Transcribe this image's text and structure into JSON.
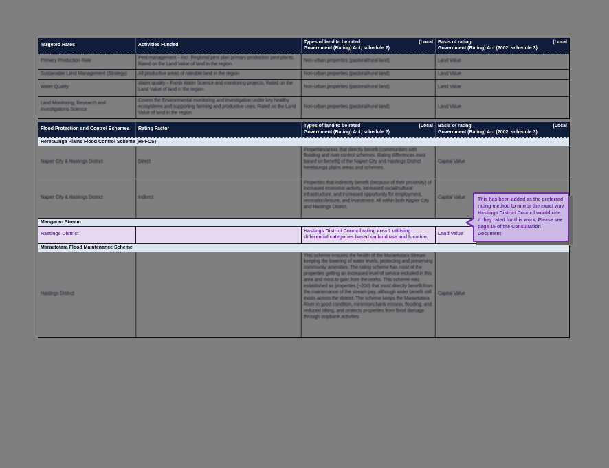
{
  "colors": {
    "page_background": "#7f7f7f",
    "header_navy": "#101d3a",
    "section_band_blue": "#dce6f1",
    "highlight_lavender": "#e6daf1",
    "highlight_purple_text": "#7030a0",
    "callout_background": "#cbb8e4",
    "callout_border": "#7030a0"
  },
  "table1": {
    "headers": {
      "col1": "Targeted Rates",
      "col2": "Activities Funded",
      "col3_line1": "Types of land to be rated",
      "col3_local": "(Local",
      "col3_line2": "Government (Rating) Act, schedule 2)",
      "col4_line1": "Basis of rating",
      "col4_local": "(Local",
      "col4_line2": "Government (Rating) Act (2002, schedule 3)"
    },
    "rows": [
      {
        "targeted_rate": "Primary Production Rate",
        "activities": "Pest management – incl. Regional pest plan primary production pest plants. Rated on the Land Value of land in the region.",
        "land_types": "Non-urban properties (pastoral/rural land).",
        "basis": "Land Value"
      },
      {
        "targeted_rate": "Sustainable Land Management (Strategy)",
        "activities": "All productive areas of rateable land in the region",
        "land_types": "Non-urban properties (pastoral/rural land).",
        "basis": "Land Value"
      },
      {
        "targeted_rate": "Water Quality",
        "activities": "Water quality – Fresh Water Science and monitoring projects. Rated on the Land Value of land in the region.",
        "land_types": "Non-urban properties (pastoral/rural land).",
        "basis": "Land Value"
      },
      {
        "targeted_rate": "Land Monitoring, Research and Investigations Science",
        "activities": "Covers the Environmental monitoring and investigation under key healthy ecosystems and supporting farming and productive uses. Rated on the Land Value of land in the region.",
        "land_types": "Non-urban properties (pastoral/rural land).",
        "basis": "Land Value"
      }
    ]
  },
  "table2": {
    "headers": {
      "col1": "Flood Protection and Control Schemes",
      "col2": "Rating Factor",
      "col3_line1": "Types of land to be rated",
      "col3_local": "(Local",
      "col3_line2": "Government (Rating) Act, schedule 2)",
      "col4_line1": "Basis of rating",
      "col4_local": "(Local",
      "col4_line2": "Government (Rating) Act (2002, schedule 3)"
    },
    "sections": {
      "hpfcs": "Heretaunga Plains Flood Control Scheme (HPFCS)",
      "mangarau": "Mangarau Stream",
      "maraetotara": "Maraetotara Flood Maintenance Scheme"
    },
    "rows": [
      {
        "scheme": "Napier City & Hastings District",
        "factor": "Direct",
        "land_types": "Properties/areas that directly benefit (communities with flooding and river control schemes. Rating differences exist based on benefit) of the Napier City and Hastings District heretaunga plains areas and schemes.",
        "basis": "Capital Value"
      },
      {
        "scheme": "Napier City & Hastings District",
        "factor": "Indirect",
        "land_types": "Properties that indirectly benefit (because of their proximity) of increased economic activity, increased social/cultural infrastructure, and increased opportunity for employment, recreation/leisure, and investment. All within both Napier City and Hastings District.",
        "basis": "Capital Value"
      },
      {
        "scheme": "Hastings District",
        "factor": "",
        "land_types": "Hastings District Council rating area 1 utilising differential categories based on land use and location.",
        "basis": "Land Value"
      },
      {
        "scheme": "Hastings District",
        "factor": "",
        "land_types": "This scheme ensures the health of the Maraetotara Stream keeping the lowering of water levels, protecting and preserving community amenities. The rating scheme has most of the properties getting an increased level of service included in this area and most to gain from the works. This scheme was established so properties (~200) that most directly benefit from the maintenance of the stream pay, although wider benefit still exists across the district. The scheme keeps the Maraetotara River in good condition, minimises bank erosion, flooding, and reduced silting, and protects properties from flood damage through stopbank activities.",
        "basis": "Capital Value"
      }
    ]
  },
  "callout": {
    "text": "This has been added as the preferred rating method to mirror the exact way Hastings District Council would rate if they rated for this work. Please see page 16 of the Consultation Document"
  }
}
